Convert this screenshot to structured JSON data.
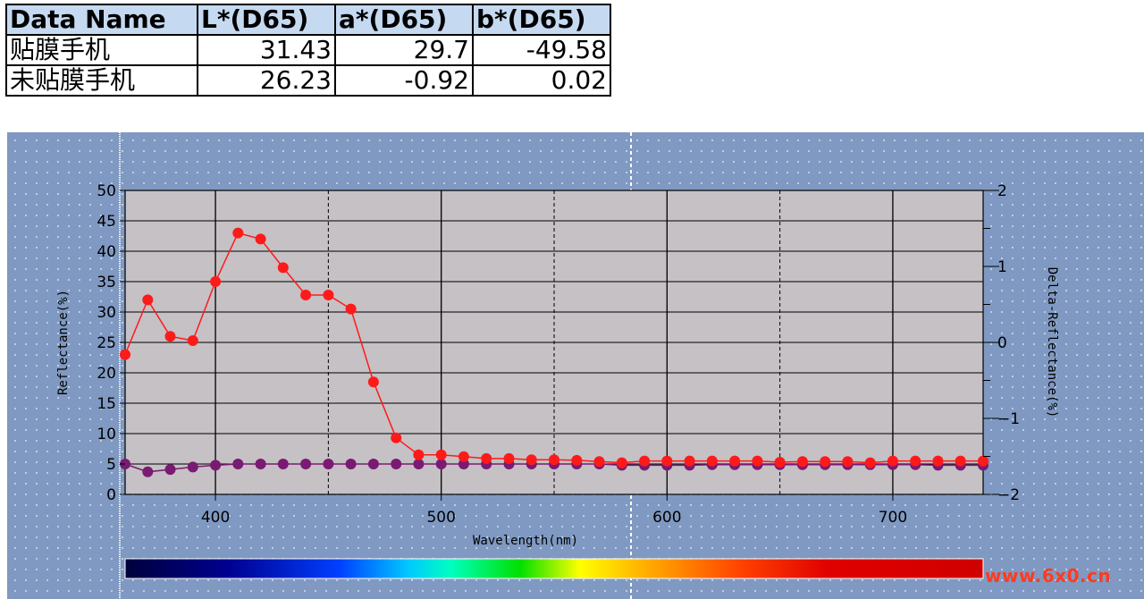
{
  "table": {
    "headers": [
      "Data Name",
      "L*(D65)",
      "a*(D65)",
      "b*(D65)"
    ],
    "rows": [
      {
        "name": "贴膜手机",
        "L": "31.43",
        "a": "29.7",
        "b": "-49.58"
      },
      {
        "name": "未贴膜手机",
        "L": "26.23",
        "a": "-0.92",
        "b": "0.02"
      }
    ]
  },
  "chart_data": {
    "type": "line",
    "xlabel": "Wavelength(nm)",
    "ylabel": "Reflectance(%)",
    "y2label": "Delta-Reflectance(%)",
    "xlim": [
      360,
      740
    ],
    "ylim": [
      0,
      50
    ],
    "y2lim": [
      -2,
      2
    ],
    "xticks": [
      400,
      500,
      600,
      700
    ],
    "yticks": [
      0,
      5,
      10,
      15,
      20,
      25,
      30,
      35,
      40,
      45,
      50
    ],
    "y2ticks": [
      -2,
      -1,
      0,
      1,
      2
    ],
    "grid": true,
    "series": [
      {
        "color": "#ff1a1a",
        "x": [
          360,
          370,
          380,
          390,
          400,
          410,
          420,
          430,
          440,
          450,
          460,
          470,
          480,
          490,
          500,
          510,
          520,
          530,
          540,
          550,
          560,
          570,
          580,
          590,
          600,
          610,
          620,
          630,
          640,
          650,
          660,
          670,
          680,
          690,
          700,
          710,
          720,
          730,
          740
        ],
        "values": [
          23,
          32,
          26,
          25.3,
          35,
          43,
          42,
          37.3,
          32.8,
          32.8,
          30.5,
          18.5,
          9.3,
          6.5,
          6.5,
          6.2,
          5.9,
          5.9,
          5.7,
          5.7,
          5.6,
          5.4,
          5.2,
          5.5,
          5.5,
          5.5,
          5.5,
          5.5,
          5.5,
          5.3,
          5.4,
          5.4,
          5.4,
          5.2,
          5.5,
          5.5,
          5.5,
          5.5,
          5.5
        ]
      },
      {
        "color": "#7a1a72",
        "x": [
          360,
          370,
          380,
          390,
          400,
          410,
          420,
          430,
          440,
          450,
          460,
          470,
          480,
          490,
          500,
          510,
          520,
          530,
          540,
          550,
          560,
          570,
          580,
          590,
          600,
          610,
          620,
          630,
          640,
          650,
          660,
          670,
          680,
          690,
          700,
          710,
          720,
          730,
          740
        ],
        "values": [
          5,
          3.7,
          4.1,
          4.5,
          4.8,
          5,
          5,
          5,
          5,
          5,
          5,
          5,
          5,
          5,
          5,
          5,
          5,
          5,
          5,
          5,
          5,
          5,
          4.8,
          4.8,
          4.8,
          4.8,
          4.9,
          4.9,
          4.9,
          4.9,
          4.9,
          4.9,
          4.9,
          4.9,
          4.9,
          4.9,
          4.8,
          4.8,
          4.8
        ]
      }
    ]
  },
  "watermark": "www.6x0.cn",
  "colors": {
    "panel": "#7f99c2",
    "plot_bg": "#c5c1c5",
    "header_bg": "#c5d9f1"
  }
}
